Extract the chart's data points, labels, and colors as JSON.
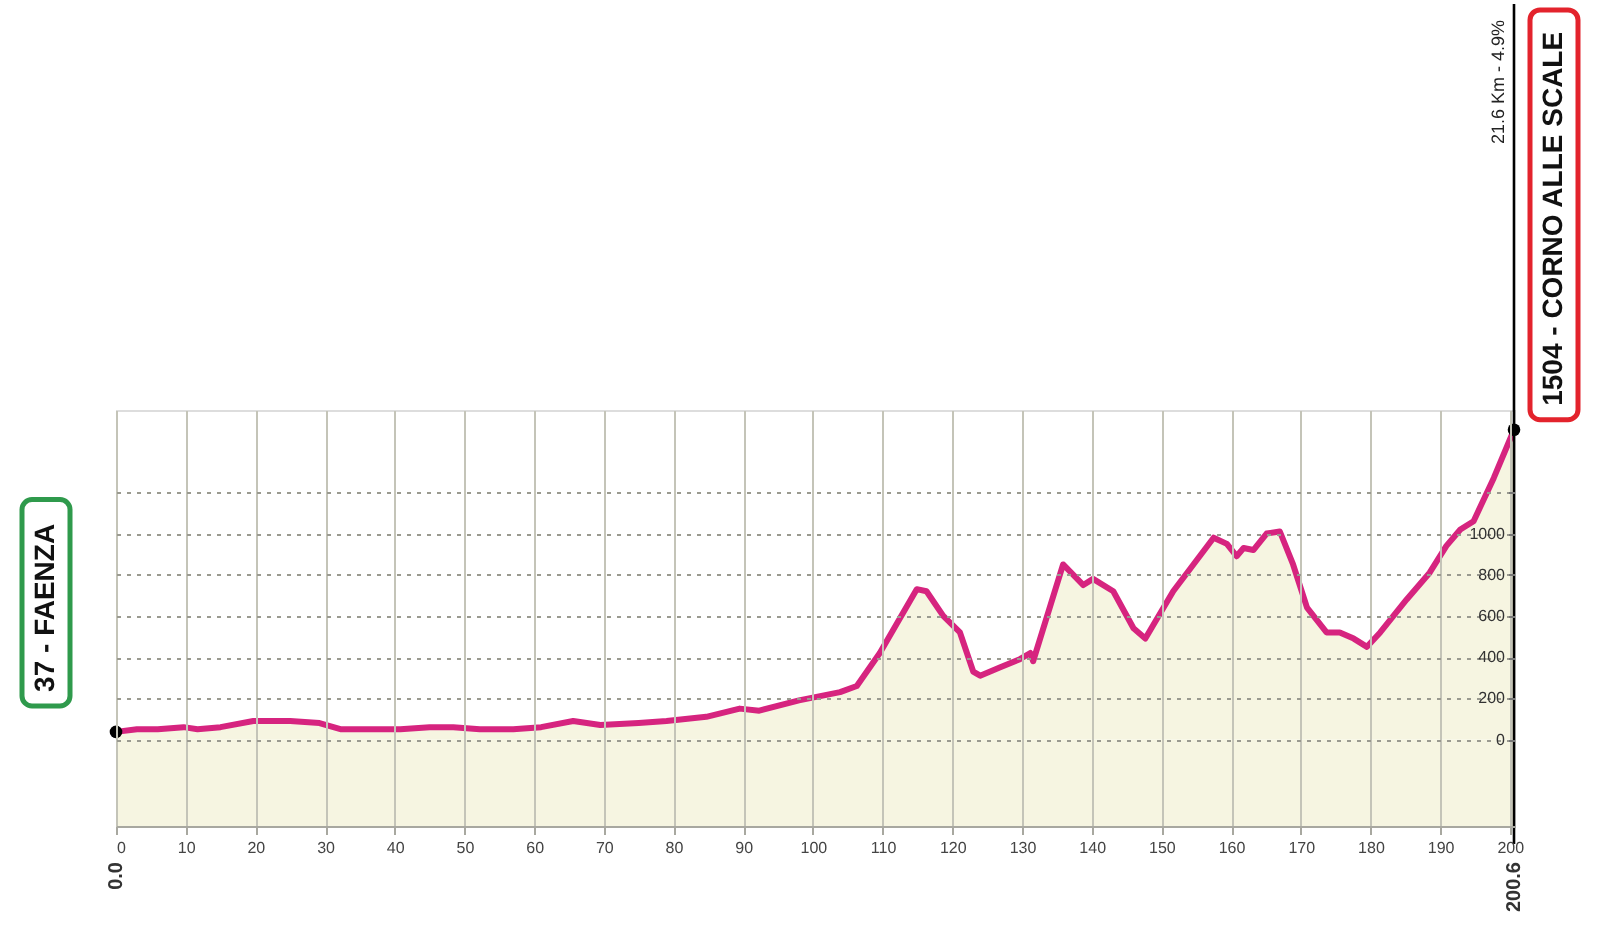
{
  "chart_data": {
    "type": "area",
    "x": [
      0,
      3,
      6,
      9.7,
      11.7,
      15,
      19.7,
      25,
      29.2,
      32.2,
      36,
      40.8,
      45,
      48.4,
      52.2,
      57,
      61,
      65.6,
      69.5,
      75,
      79,
      84.7,
      89.5,
      92.3,
      98,
      103.9,
      106.3,
      109.6,
      114.9,
      116.3,
      118.7,
      121.1,
      123,
      124,
      126.8,
      129.7,
      131.2,
      131.6,
      135.9,
      138.8,
      140.2,
      143.1,
      146,
      147.7,
      151.7,
      154.6,
      157.5,
      159.4,
      160.8,
      161.8,
      163.2,
      165.1,
      167,
      168.9,
      170.9,
      173.7,
      175.6,
      177.6,
      179.5,
      181.4,
      185.2,
      188.5,
      190.9,
      192.9,
      194.8,
      197.7,
      200.6
    ],
    "series": [
      {
        "color": "#d6247f",
        "values": [
          37,
          50,
          50,
          60,
          50,
          60,
          90,
          90,
          80,
          50,
          50,
          50,
          60,
          60,
          50,
          50,
          60,
          90,
          70,
          80,
          90,
          110,
          150,
          140,
          190,
          230,
          260,
          420,
          730,
          720,
          600,
          520,
          330,
          310,
          350,
          390,
          420,
          380,
          850,
          750,
          780,
          720,
          540,
          490,
          720,
          850,
          980,
          950,
          890,
          930,
          920,
          1000,
          1010,
          850,
          640,
          520,
          520,
          490,
          450,
          520,
          680,
          810,
          940,
          1020,
          1060,
          1270,
          1504
        ]
      },
      {
        "type": "scatter",
        "color": "#000000",
        "marker": "circle",
        "x": [
          0,
          200.6
        ],
        "values": [
          37,
          1504
        ]
      }
    ],
    "xlim": [
      0,
      200.6
    ],
    "xticks": [
      0,
      10,
      20,
      30,
      40,
      50,
      60,
      70,
      80,
      90,
      100,
      110,
      120,
      130,
      140,
      150,
      160,
      170,
      180,
      190,
      200
    ],
    "ylim": [
      -420,
      1600
    ],
    "yticks": [
      0,
      200,
      400,
      600,
      800,
      1000,
      {
        "value": 1200,
        "label": null
      }
    ],
    "grid": true,
    "bands": [
      {
        "axis": "y",
        "from": -420,
        "to": 0,
        "color": "#f6f5e1"
      }
    ],
    "ref_lines": [
      {
        "axis": "x",
        "value": 200.6,
        "label": "21.6 Km - 4.9%",
        "color": "#000000"
      }
    ],
    "annotations": [
      {
        "text": "37 - FAENZA",
        "x": 0,
        "y": 37
      },
      {
        "text": "1504 - CORNO ALLE SCALE",
        "x": 200.6,
        "y": 1504
      },
      "0.0",
      "200.6"
    ]
  }
}
